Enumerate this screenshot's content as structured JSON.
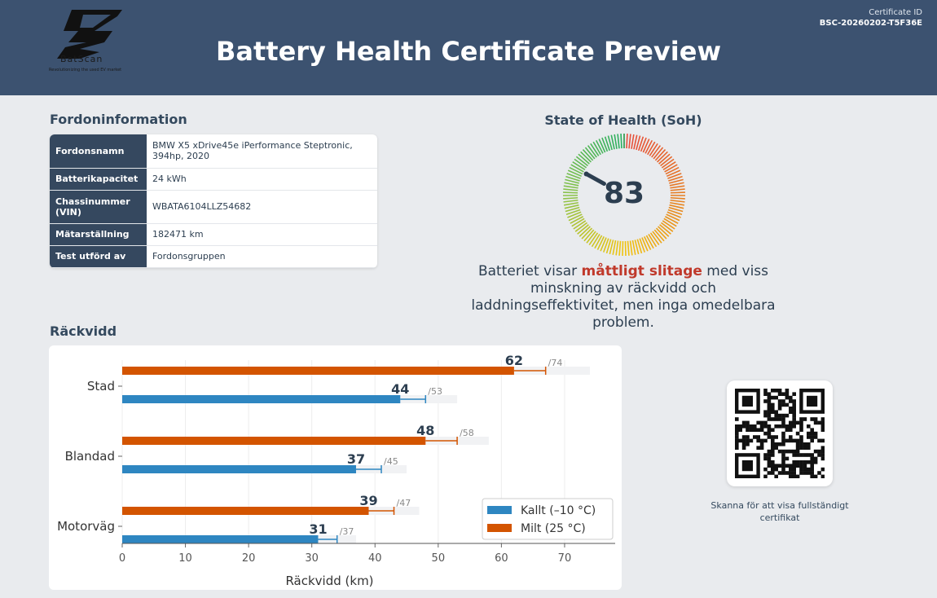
{
  "header": {
    "brand": "BatScan",
    "tagline": "Revolutionizing the used EV market",
    "title": "Battery Health Certificate Preview",
    "certificate_label": "Certificate ID",
    "certificate_id": "BSC-20260202-T5F36E",
    "logo_icon": "batscan-logo-icon"
  },
  "vehicle": {
    "section_title": "Fordoninformation",
    "rows": [
      {
        "label": "Fordonsnamn",
        "value": "BMW X5 xDrive45e iPerformance Steptronic, 394hp, 2020"
      },
      {
        "label": "Batterikapacitet",
        "value": "24 kWh"
      },
      {
        "label": "Chassinummer (VIN)",
        "value": "WBATA6104LLZ54682"
      },
      {
        "label": "Mätarställning",
        "value": "182471 km"
      },
      {
        "label": "Test utförd av",
        "value": "Fordonsgruppen"
      }
    ]
  },
  "soh": {
    "title": "State of Health (SoH)",
    "value": 83,
    "value_text": "83",
    "text_before": "Batteriet visar ",
    "text_highlight": "måttligt slitage",
    "text_after": " med viss minskning av räckvidd och laddningseffektivitet, men inga omedelbara problem."
  },
  "range": {
    "section_title": "Räckvidd"
  },
  "chart_data": {
    "type": "bar",
    "orientation": "horizontal",
    "categories": [
      "Stad",
      "Blandad",
      "Motorväg"
    ],
    "series": [
      {
        "name": "Kallt (–10 °C)",
        "color": "#2e86c1",
        "values": [
          44,
          37,
          31
        ],
        "max_values": [
          53,
          45,
          37
        ],
        "max_labels": [
          "/53",
          "/45",
          "/37"
        ],
        "value_labels": [
          "44",
          "37",
          "31"
        ]
      },
      {
        "name": "Milt (25 °C)",
        "color": "#d35400",
        "values": [
          62,
          48,
          39
        ],
        "max_values": [
          74,
          58,
          47
        ],
        "max_labels": [
          "/74",
          "/58",
          "/47"
        ],
        "value_labels": [
          "62",
          "48",
          "39"
        ]
      }
    ],
    "error_ends": {
      "Kallt (–10 °C)": [
        48,
        41,
        34
      ],
      "Milt (25 °C)": [
        67,
        53,
        43
      ]
    },
    "xlabel": "Räckvidd (km)",
    "xticks": [
      0,
      10,
      20,
      30,
      40,
      50,
      60,
      70
    ],
    "xtick_labels": [
      "0",
      "10",
      "20",
      "30",
      "40",
      "50",
      "60",
      "70"
    ],
    "xlim": [
      0,
      78
    ],
    "grid": "vertical",
    "legend_position": "bottom-right"
  },
  "qr": {
    "caption": "Skanna för att visa fullständigt certifikat",
    "icon": "qr-code-icon"
  }
}
